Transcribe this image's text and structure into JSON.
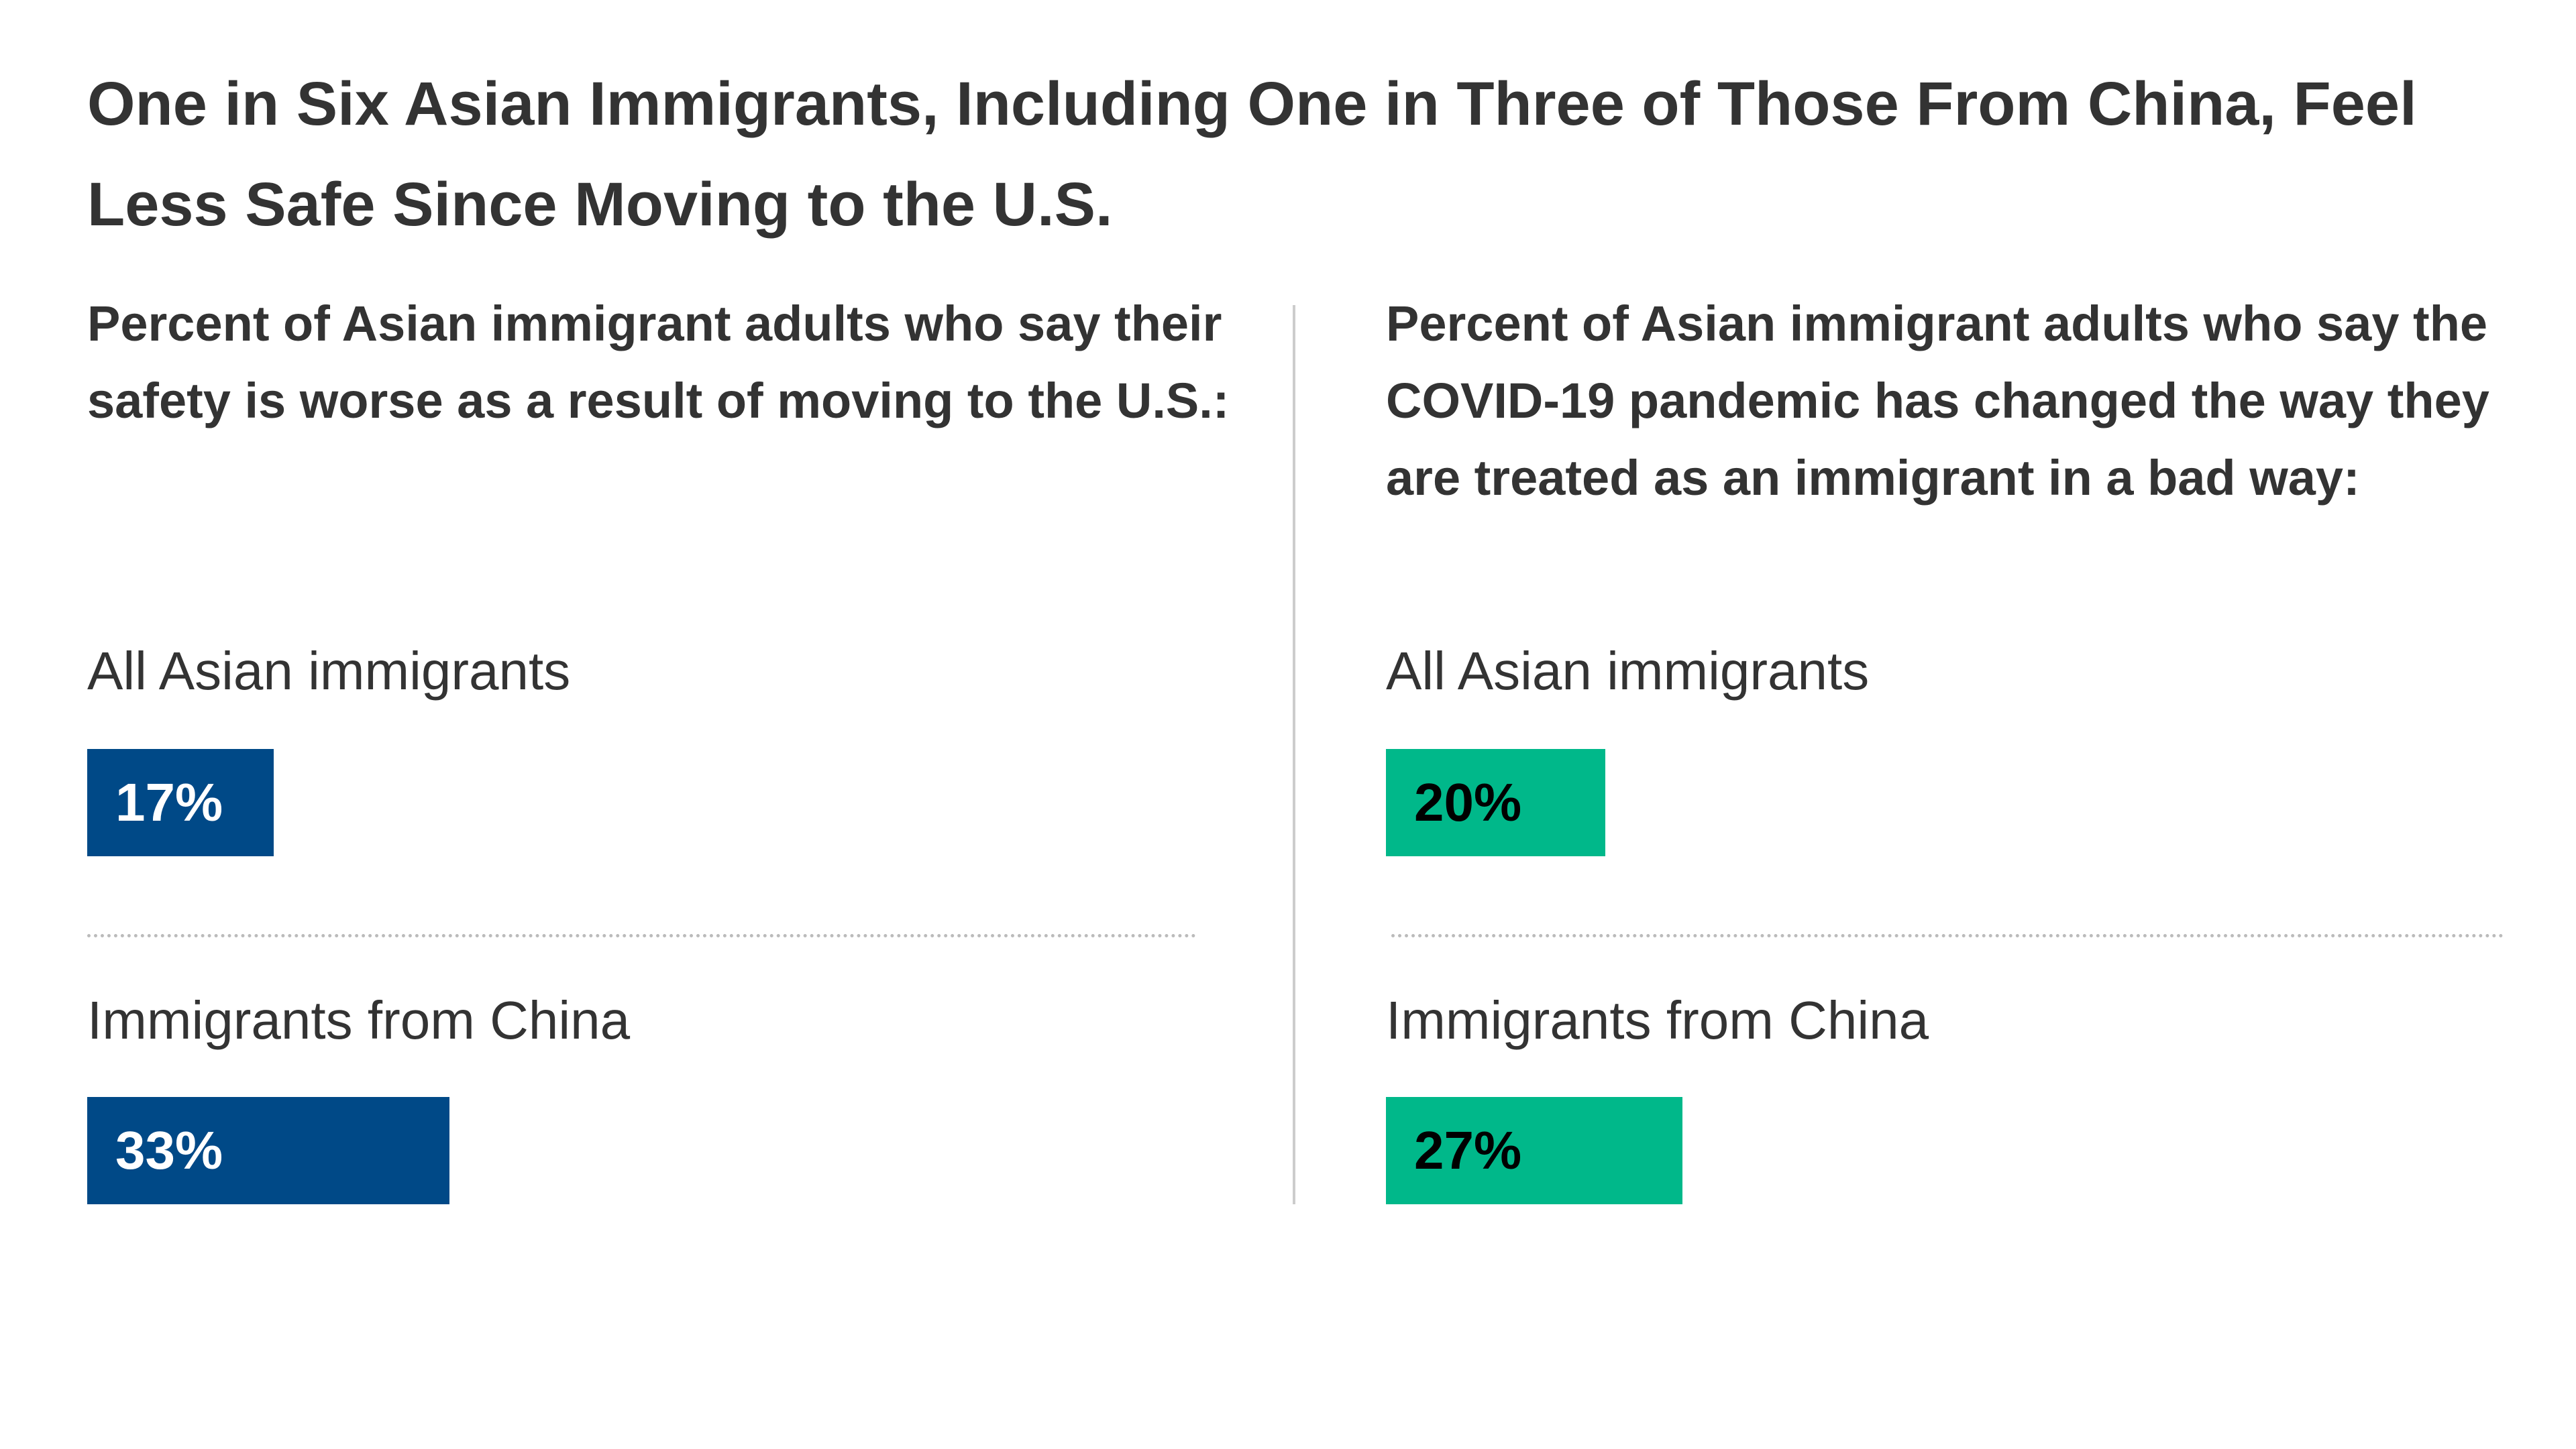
{
  "title": "One in Six Asian Immigrants, Including One in Three of Those From China, Feel Less Safe Since Moving to the U.S.",
  "chart_data": [
    {
      "type": "bar",
      "subtitle": "Percent of Asian immigrant adults who say their safety is worse as a result of moving to the U.S.:",
      "categories": [
        "All Asian immigrants",
        "Immigrants from China"
      ],
      "values": [
        17,
        33
      ],
      "value_labels": [
        "17%",
        "33%"
      ],
      "color": "#004987",
      "label_color": "#ffffff"
    },
    {
      "type": "bar",
      "subtitle": "Percent of Asian immigrant adults who say the COVID-19 pandemic has changed the way they are treated as an immigrant in a bad way:",
      "categories": [
        "All Asian immigrants",
        "Immigrants from China"
      ],
      "values": [
        20,
        27
      ],
      "value_labels": [
        "20%",
        "27%"
      ],
      "color": "#00b88a",
      "label_color": "#000000"
    }
  ]
}
